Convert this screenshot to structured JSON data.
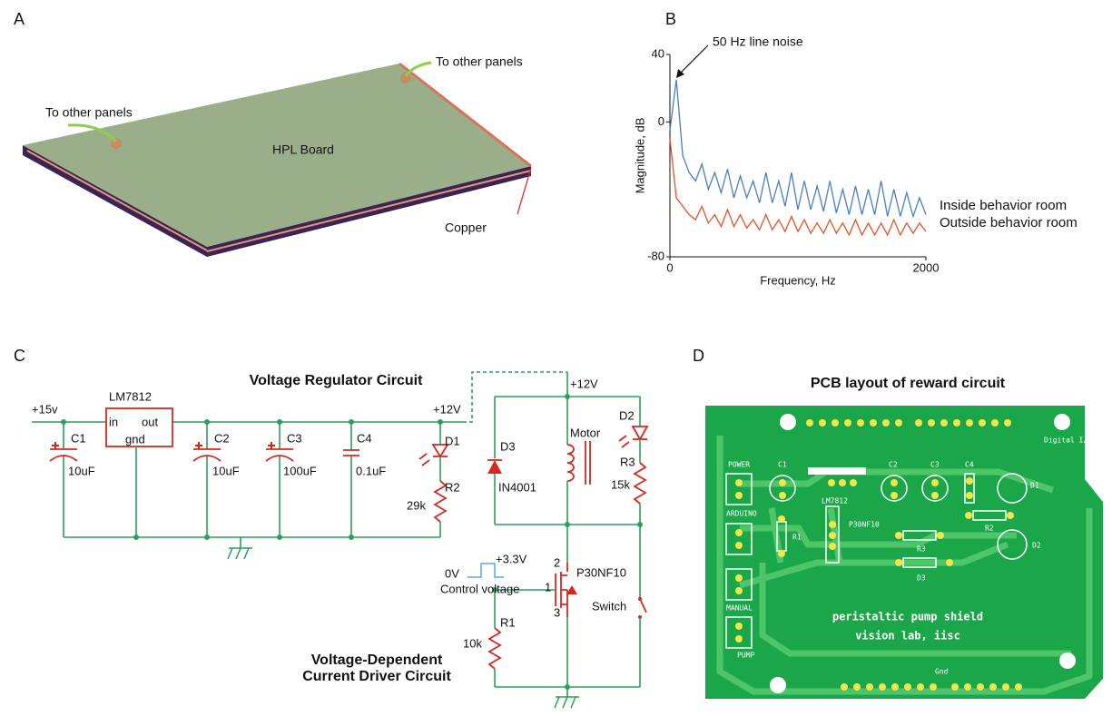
{
  "panels": {
    "a": {
      "letter": "A",
      "wire_left": "To other panels",
      "wire_right": "To other panels",
      "board": "HPL Board",
      "copper": "Copper"
    },
    "b": {
      "letter": "B"
    },
    "c": {
      "letter": "C",
      "title_top": "Voltage Regulator Circuit",
      "title_bottom_1": "Voltage-Dependent",
      "title_bottom_2": "Current Driver Circuit",
      "labels": [
        "+15v",
        "LM7812",
        "in",
        "out",
        "gnd",
        "C1",
        "10uF",
        "C2",
        "10uF",
        "C3",
        "100uF",
        "C4",
        "0.1uF",
        "+12V",
        "D1",
        "R2",
        "29k",
        "+12V",
        "D3",
        "IN4001",
        "Motor",
        "D2",
        "R3",
        "15k",
        "0V",
        "+3.3V",
        "Control voltage",
        "2",
        "P30NF10",
        "1",
        "3",
        "Switch",
        "R1",
        "10k"
      ]
    },
    "d": {
      "letter": "D",
      "title": "PCB layout of reward circuit",
      "labels": [
        "POWER",
        "C1",
        "LM7812",
        "C2",
        "C3",
        "C4",
        "D1",
        "ARDUINO",
        "P30NF10",
        "R1",
        "R2",
        "R3",
        "D2",
        "D3",
        "MANUAL",
        "PUMP",
        "Digital I/O",
        "Gnd",
        "peristaltic pump shield",
        "vision lab, iisc"
      ]
    }
  },
  "chart_data": {
    "type": "line",
    "annotation": "50 Hz line noise",
    "xlabel": "Frequency, Hz",
    "ylabel": "Magnitude, dB",
    "x": [
      0,
      50,
      100,
      150,
      200,
      250,
      300,
      350,
      400,
      450,
      500,
      550,
      600,
      650,
      700,
      750,
      800,
      850,
      900,
      950,
      1000,
      1050,
      1100,
      1150,
      1200,
      1250,
      1300,
      1350,
      1400,
      1450,
      1500,
      1550,
      1600,
      1650,
      1700,
      1750,
      1800,
      1850,
      1900,
      1950,
      2000
    ],
    "series": [
      {
        "name": "Inside behavior room",
        "color": "#4a7fc1",
        "values": [
          -5,
          25,
          -20,
          -30,
          -35,
          -25,
          -40,
          -30,
          -42,
          -28,
          -45,
          -32,
          -45,
          -35,
          -48,
          -30,
          -48,
          -35,
          -50,
          -30,
          -52,
          -35,
          -52,
          -38,
          -53,
          -35,
          -54,
          -40,
          -55,
          -38,
          -55,
          -40,
          -55,
          -35,
          -56,
          -40,
          -56,
          -42,
          -56,
          -45,
          -55
        ]
      },
      {
        "name": "Outside behavior room",
        "color": "#e2522a",
        "values": [
          -10,
          -45,
          -50,
          -55,
          -58,
          -50,
          -60,
          -55,
          -62,
          -52,
          -62,
          -55,
          -63,
          -58,
          -64,
          -55,
          -64,
          -58,
          -65,
          -56,
          -65,
          -58,
          -66,
          -60,
          -66,
          -58,
          -66,
          -60,
          -67,
          -58,
          -67,
          -60,
          -67,
          -60,
          -67,
          -58,
          -67,
          -60,
          -66,
          -60,
          -65
        ]
      }
    ],
    "xlim": [
      0,
      2000
    ],
    "xticks": [
      0,
      2000
    ],
    "ylim": [
      -80,
      40
    ],
    "yticks": [
      -80,
      0,
      40
    ],
    "legend": "right"
  }
}
